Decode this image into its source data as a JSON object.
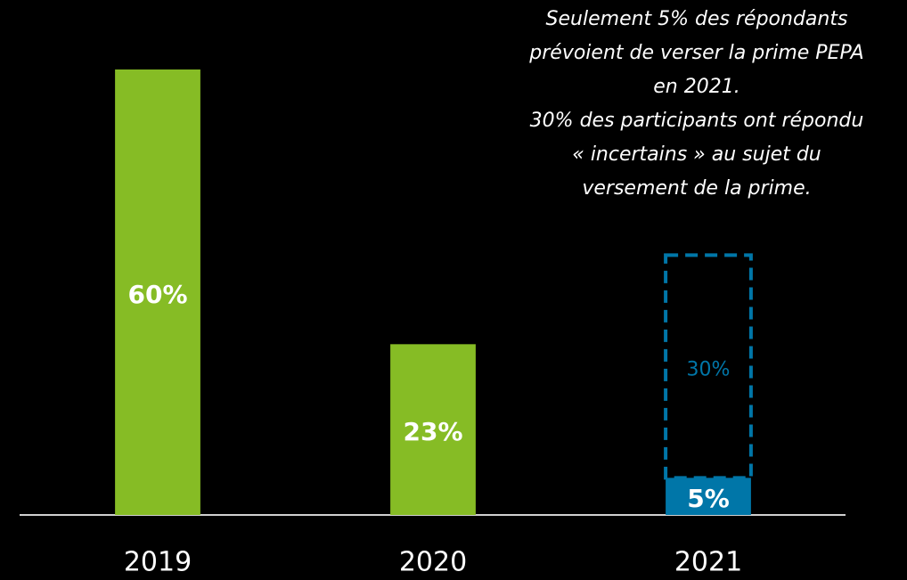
{
  "chart_data": {
    "type": "bar",
    "categories": [
      "2019",
      "2020",
      "2021"
    ],
    "series": [
      {
        "colors": [
          "#86bc25",
          "#86bc25",
          "#0076a8"
        ],
        "values": [
          60,
          23,
          5
        ],
        "value_labels": [
          "60%",
          "23%",
          "5%"
        ]
      },
      {
        "color": "#0076a8",
        "style": "dashed",
        "values": [
          null,
          null,
          30
        ],
        "value_labels": [
          null,
          null,
          "30%"
        ]
      }
    ],
    "ylim": [
      0,
      60
    ],
    "annotation": [
      "Seulement 5% des répondants",
      "prévoient de verser la prime PEPA",
      "en 2021.",
      "30% des participants ont répondu",
      "« incertains » au sujet du",
      "versement de la prime."
    ]
  }
}
